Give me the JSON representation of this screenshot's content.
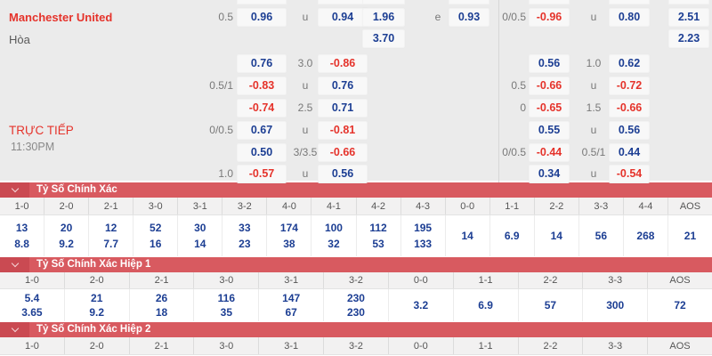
{
  "odds": {
    "team": "Manchester United",
    "draw": "Hòa",
    "live": "TRỰC TIẾP",
    "time": "11:30PM",
    "stubs": [
      "B1",
      "B2",
      "B3",
      "B4",
      "B5",
      "B6",
      "B7"
    ],
    "cells": [
      {
        "row": "A",
        "slot": "L1",
        "t": "0.5"
      },
      {
        "row": "A",
        "slot": "B1",
        "t": "0.96",
        "c": "b"
      },
      {
        "row": "A",
        "slot": "L2",
        "t": "u"
      },
      {
        "row": "A",
        "slot": "B2",
        "t": "0.94",
        "c": "b"
      },
      {
        "row": "A",
        "slot": "B3",
        "t": "1.96",
        "c": "b"
      },
      {
        "row": "A",
        "slot": "L3",
        "t": "e"
      },
      {
        "row": "A",
        "slot": "B4",
        "t": "0.93",
        "c": "b"
      },
      {
        "row": "A",
        "slot": "L4",
        "t": "0/0.5"
      },
      {
        "row": "A",
        "slot": "B5",
        "t": "-0.96",
        "c": "r"
      },
      {
        "row": "A",
        "slot": "L5",
        "t": "u"
      },
      {
        "row": "A",
        "slot": "B6",
        "t": "0.80",
        "c": "b"
      },
      {
        "row": "A",
        "slot": "B7",
        "t": "2.51",
        "c": "b"
      },
      {
        "row": "B",
        "slot": "B3",
        "t": "3.70",
        "c": "b"
      },
      {
        "row": "B",
        "slot": "B7",
        "t": "2.23",
        "c": "b"
      },
      {
        "row": "C",
        "slot": "B1",
        "t": "0.76",
        "c": "b"
      },
      {
        "row": "C",
        "slot": "L2",
        "t": "3.0"
      },
      {
        "row": "C",
        "slot": "B2",
        "t": "-0.86",
        "c": "r"
      },
      {
        "row": "C",
        "slot": "B5",
        "t": "0.56",
        "c": "b"
      },
      {
        "row": "C",
        "slot": "L5",
        "t": "1.0"
      },
      {
        "row": "C",
        "slot": "B6",
        "t": "0.62",
        "c": "b"
      },
      {
        "row": "D",
        "slot": "L1",
        "t": "0.5/1"
      },
      {
        "row": "D",
        "slot": "B1",
        "t": "-0.83",
        "c": "r"
      },
      {
        "row": "D",
        "slot": "L2",
        "t": "u"
      },
      {
        "row": "D",
        "slot": "B2",
        "t": "0.76",
        "c": "b"
      },
      {
        "row": "D",
        "slot": "L4",
        "t": "0.5"
      },
      {
        "row": "D",
        "slot": "B5",
        "t": "-0.66",
        "c": "r"
      },
      {
        "row": "D",
        "slot": "L5",
        "t": "u"
      },
      {
        "row": "D",
        "slot": "B6",
        "t": "-0.72",
        "c": "r"
      },
      {
        "row": "E",
        "slot": "B1",
        "t": "-0.74",
        "c": "r"
      },
      {
        "row": "E",
        "slot": "L2",
        "t": "2.5"
      },
      {
        "row": "E",
        "slot": "B2",
        "t": "0.71",
        "c": "b"
      },
      {
        "row": "E",
        "slot": "L4",
        "t": "0"
      },
      {
        "row": "E",
        "slot": "B5",
        "t": "-0.65",
        "c": "r"
      },
      {
        "row": "E",
        "slot": "L5",
        "t": "1.5"
      },
      {
        "row": "E",
        "slot": "B6",
        "t": "-0.66",
        "c": "r"
      },
      {
        "row": "F",
        "slot": "L1",
        "t": "0/0.5"
      },
      {
        "row": "F",
        "slot": "B1",
        "t": "0.67",
        "c": "b"
      },
      {
        "row": "F",
        "slot": "L2",
        "t": "u"
      },
      {
        "row": "F",
        "slot": "B2",
        "t": "-0.81",
        "c": "r"
      },
      {
        "row": "F",
        "slot": "B5",
        "t": "0.55",
        "c": "b"
      },
      {
        "row": "F",
        "slot": "L5",
        "t": "u"
      },
      {
        "row": "F",
        "slot": "B6",
        "t": "0.56",
        "c": "b"
      },
      {
        "row": "G",
        "slot": "B1",
        "t": "0.50",
        "c": "b"
      },
      {
        "row": "G",
        "slot": "L2",
        "t": "3/3.5"
      },
      {
        "row": "G",
        "slot": "B2",
        "t": "-0.66",
        "c": "r"
      },
      {
        "row": "G",
        "slot": "L4",
        "t": "0/0.5"
      },
      {
        "row": "G",
        "slot": "B5",
        "t": "-0.44",
        "c": "r"
      },
      {
        "row": "G",
        "slot": "L5",
        "t": "0.5/1"
      },
      {
        "row": "G",
        "slot": "B6",
        "t": "0.44",
        "c": "b"
      },
      {
        "row": "H",
        "slot": "L1",
        "t": "1.0"
      },
      {
        "row": "H",
        "slot": "B1",
        "t": "-0.57",
        "c": "r"
      },
      {
        "row": "H",
        "slot": "L2",
        "t": "u"
      },
      {
        "row": "H",
        "slot": "B2",
        "t": "0.56",
        "c": "b"
      },
      {
        "row": "H",
        "slot": "B5",
        "t": "0.34",
        "c": "b"
      },
      {
        "row": "H",
        "slot": "L5",
        "t": "u"
      },
      {
        "row": "H",
        "slot": "B6",
        "t": "-0.54",
        "c": "r"
      }
    ]
  },
  "sections": [
    {
      "title": "Tỷ Số Chính Xác",
      "columns": [
        {
          "s": "1-0",
          "v": [
            "13",
            "8.8"
          ]
        },
        {
          "s": "2-0",
          "v": [
            "20",
            "9.2"
          ]
        },
        {
          "s": "2-1",
          "v": [
            "12",
            "7.7"
          ]
        },
        {
          "s": "3-0",
          "v": [
            "52",
            "16"
          ]
        },
        {
          "s": "3-1",
          "v": [
            "30",
            "14"
          ]
        },
        {
          "s": "3-2",
          "v": [
            "33",
            "23"
          ]
        },
        {
          "s": "4-0",
          "v": [
            "174",
            "38"
          ]
        },
        {
          "s": "4-1",
          "v": [
            "100",
            "32"
          ]
        },
        {
          "s": "4-2",
          "v": [
            "112",
            "53"
          ]
        },
        {
          "s": "4-3",
          "v": [
            "195",
            "133"
          ]
        },
        {
          "s": "0-0",
          "v": [
            "14"
          ]
        },
        {
          "s": "1-1",
          "v": [
            "6.9"
          ]
        },
        {
          "s": "2-2",
          "v": [
            "14"
          ]
        },
        {
          "s": "3-3",
          "v": [
            "56"
          ]
        },
        {
          "s": "4-4",
          "v": [
            "268"
          ]
        },
        {
          "s": "AOS",
          "v": [
            "21"
          ]
        }
      ]
    },
    {
      "title": "Tỷ Số Chính Xác Hiệp 1",
      "columns": [
        {
          "s": "1-0",
          "v": [
            "5.4",
            "3.65"
          ]
        },
        {
          "s": "2-0",
          "v": [
            "21",
            "9.2"
          ]
        },
        {
          "s": "2-1",
          "v": [
            "26",
            "18"
          ]
        },
        {
          "s": "3-0",
          "v": [
            "116",
            "35"
          ]
        },
        {
          "s": "3-1",
          "v": [
            "147",
            "67"
          ]
        },
        {
          "s": "3-2",
          "v": [
            "230",
            "230"
          ]
        },
        {
          "s": "0-0",
          "v": [
            "3.2"
          ]
        },
        {
          "s": "1-1",
          "v": [
            "6.9"
          ]
        },
        {
          "s": "2-2",
          "v": [
            "57"
          ]
        },
        {
          "s": "3-3",
          "v": [
            "300"
          ]
        },
        {
          "s": "AOS",
          "v": [
            "72"
          ]
        }
      ]
    },
    {
      "title": "Tỷ Số Chính Xác Hiệp 2",
      "columns": [
        {
          "s": "1-0",
          "v": []
        },
        {
          "s": "2-0",
          "v": []
        },
        {
          "s": "2-1",
          "v": []
        },
        {
          "s": "3-0",
          "v": []
        },
        {
          "s": "3-1",
          "v": []
        },
        {
          "s": "3-2",
          "v": []
        },
        {
          "s": "0-0",
          "v": []
        },
        {
          "s": "1-1",
          "v": []
        },
        {
          "s": "2-2",
          "v": []
        },
        {
          "s": "3-3",
          "v": []
        },
        {
          "s": "AOS",
          "v": []
        }
      ]
    }
  ]
}
